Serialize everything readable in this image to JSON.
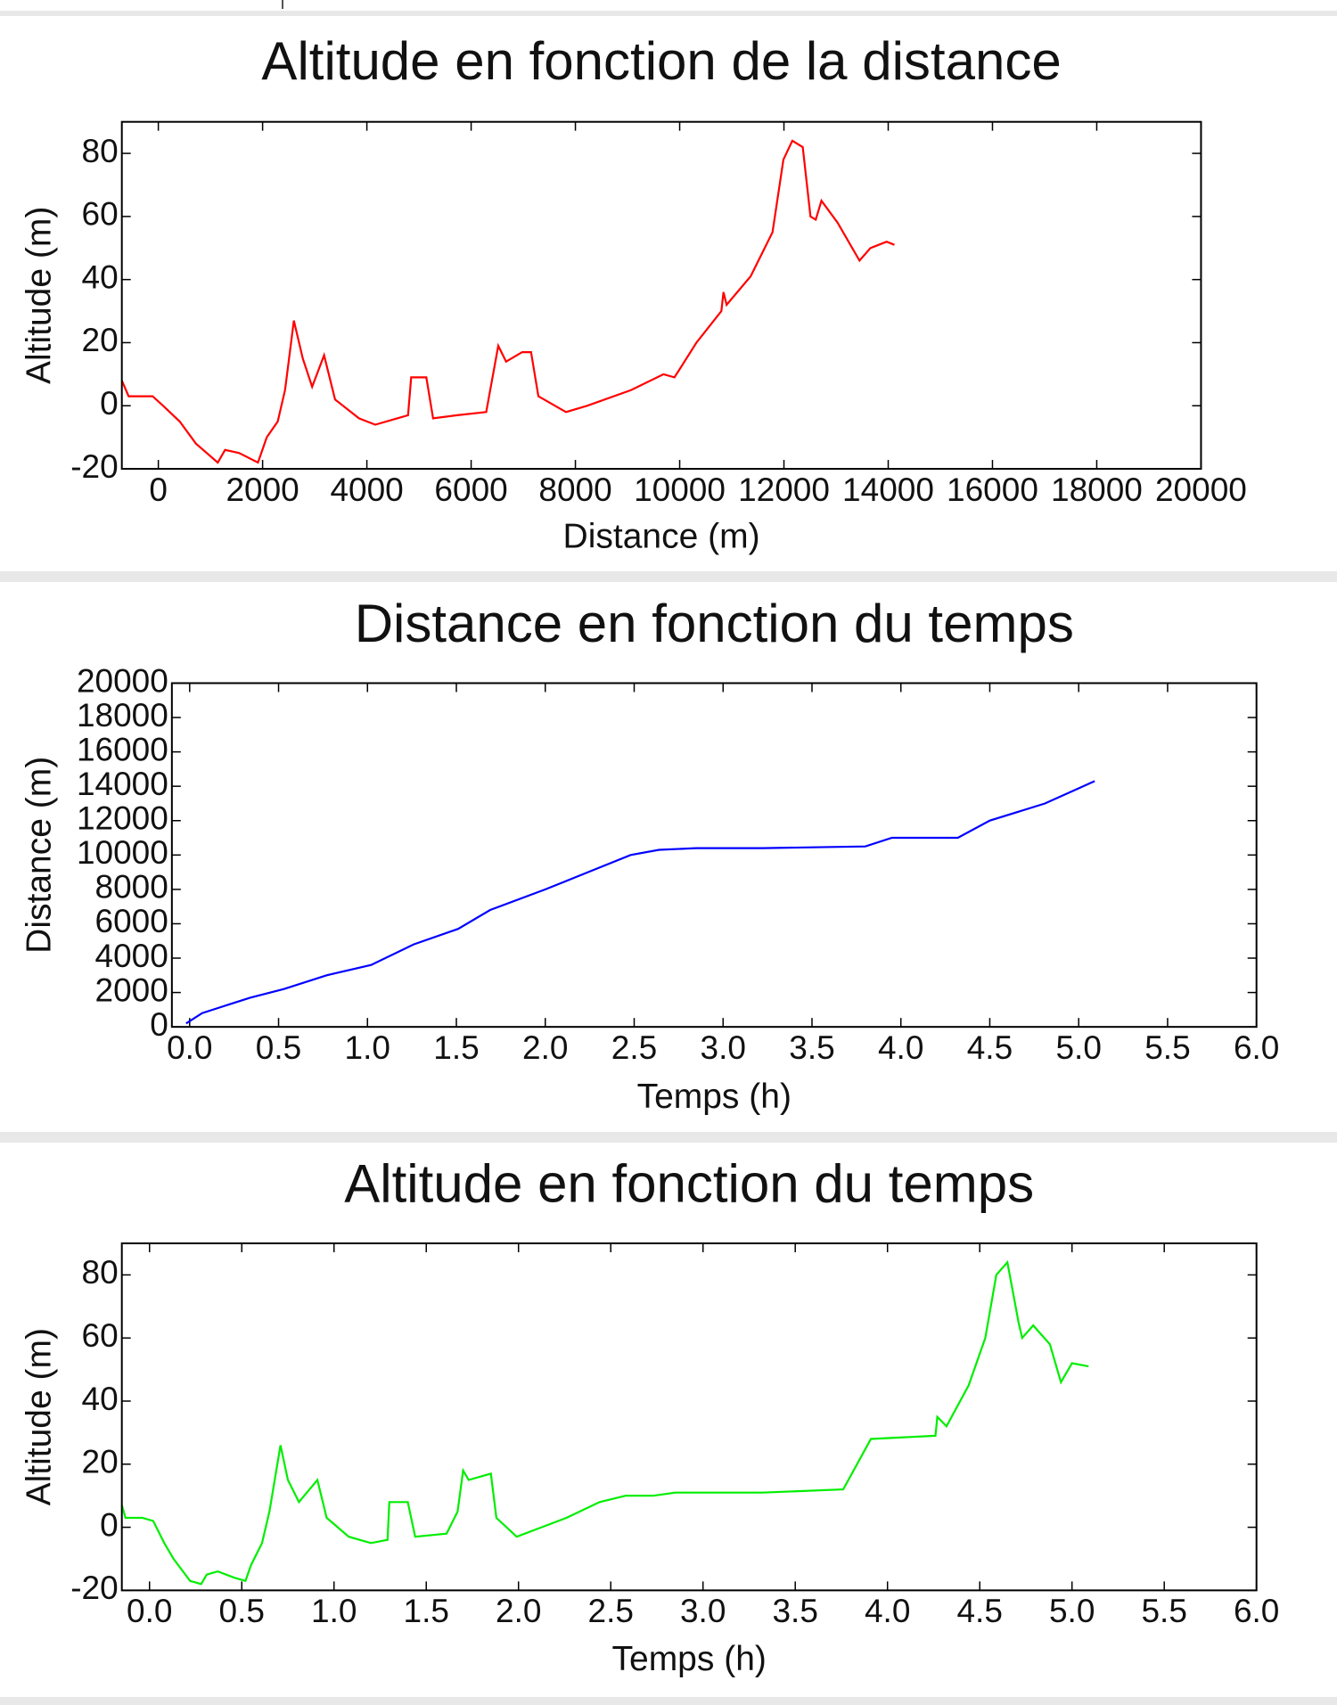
{
  "chart_data": [
    {
      "type": "line",
      "title": "Altitude en fonction de la distance",
      "x_label": "Distance (m)",
      "y_label": "Altitude (m)",
      "x": [
        -700,
        -570,
        -110,
        90,
        410,
        720,
        1140,
        1280,
        1550,
        1910,
        2080,
        2290,
        2430,
        2600,
        2770,
        2950,
        3180,
        3390,
        3850,
        4160,
        4580,
        4790,
        4850,
        5140,
        5270,
        5730,
        6290,
        6520,
        6670,
        6980,
        7150,
        7290,
        7820,
        8230,
        9070,
        9690,
        9900,
        10320,
        10800,
        10840,
        10900,
        11360,
        11780,
        11990,
        12160,
        12360,
        12510,
        12610,
        12720,
        13030,
        13450,
        13660,
        13970,
        14120
      ],
      "series": [
        {
          "color": "#ff0000",
          "values": [
            8,
            3,
            3,
            0,
            -5,
            -12,
            -18,
            -14,
            -15,
            -18,
            -10,
            -5,
            5,
            27,
            15,
            6,
            16,
            2,
            -4,
            -6,
            -4,
            -3,
            9,
            9,
            -4,
            -3,
            -2,
            19,
            14,
            17,
            17,
            3,
            -2,
            0,
            5,
            10,
            9,
            20,
            30,
            36,
            32,
            41,
            55,
            78,
            84,
            82,
            60,
            59,
            65,
            58,
            46,
            50,
            52,
            51
          ]
        }
      ],
      "xlim": [
        -700,
        20000
      ],
      "xticks": [
        0,
        2000,
        4000,
        6000,
        8000,
        10000,
        12000,
        14000,
        16000,
        18000,
        20000
      ],
      "ylim": [
        -20,
        90
      ],
      "yticks": [
        -20,
        0,
        20,
        40,
        60,
        80
      ]
    },
    {
      "type": "line",
      "title": "Distance en fonction du temps",
      "x_label": "Temps (h)",
      "y_label": "Distance (m)",
      "x": [
        -0.02,
        0.07,
        0.34,
        0.53,
        0.77,
        1.02,
        1.26,
        1.51,
        1.69,
        2.0,
        2.24,
        2.48,
        2.64,
        2.85,
        3.22,
        3.8,
        3.95,
        4.32,
        4.5,
        4.81,
        5.09
      ],
      "series": [
        {
          "color": "#0000ff",
          "values": [
            200,
            800,
            1700,
            2200,
            3000,
            3600,
            4800,
            5700,
            6800,
            8000,
            9000,
            10000,
            10300,
            10400,
            10400,
            10500,
            11000,
            11000,
            12000,
            13000,
            14300
          ]
        }
      ],
      "xlim": [
        -0.1,
        6.0
      ],
      "xticks": [
        {
          "value": 0,
          "label": "0.0"
        },
        0.5,
        {
          "value": 1,
          "label": "1.0"
        },
        1.5,
        {
          "value": 2,
          "label": "2.0"
        },
        2.5,
        {
          "value": 3,
          "label": "3.0"
        },
        3.5,
        {
          "value": 4,
          "label": "4.0"
        },
        4.5,
        {
          "value": 5,
          "label": "5.0"
        },
        5.5,
        {
          "value": 6,
          "label": "6.0"
        }
      ],
      "ylim": [
        0,
        20000
      ],
      "yticks": [
        0,
        2000,
        4000,
        6000,
        8000,
        10000,
        12000,
        14000,
        16000,
        18000,
        20000
      ]
    },
    {
      "type": "line",
      "title": "Altitude en fonction du temps",
      "x_label": "Temps (h)",
      "y_label": "Altitude (m)",
      "x": [
        -0.15,
        -0.13,
        -0.04,
        0.02,
        0.08,
        0.13,
        0.22,
        0.28,
        0.31,
        0.37,
        0.46,
        0.52,
        0.55,
        0.61,
        0.65,
        0.71,
        0.75,
        0.81,
        0.91,
        0.96,
        1.08,
        1.2,
        1.29,
        1.3,
        1.4,
        1.44,
        1.61,
        1.67,
        1.7,
        1.73,
        1.85,
        1.88,
        1.99,
        2.08,
        2.26,
        2.44,
        2.58,
        2.73,
        2.85,
        3.32,
        3.76,
        3.91,
        4.26,
        4.27,
        4.32,
        4.44,
        4.53,
        4.59,
        4.65,
        4.71,
        4.73,
        4.79,
        4.88,
        4.94,
        5.0,
        5.09
      ],
      "series": [
        {
          "color": "#00ee00",
          "values": [
            7,
            3,
            3,
            2,
            -5,
            -10,
            -17,
            -18,
            -15,
            -14,
            -16,
            -17,
            -12,
            -5,
            5,
            26,
            15,
            8,
            15,
            3,
            -3,
            -5,
            -4,
            8,
            8,
            -3,
            -2,
            5,
            18,
            15,
            17,
            3,
            -3,
            -1,
            3,
            8,
            10,
            10,
            11,
            11,
            12,
            28,
            29,
            35,
            32,
            45,
            60,
            80,
            84,
            65,
            60,
            64,
            58,
            46,
            52,
            51
          ]
        }
      ],
      "xlim": [
        -0.15,
        6.0
      ],
      "xticks": [
        {
          "value": 0,
          "label": "0.0"
        },
        0.5,
        {
          "value": 1,
          "label": "1.0"
        },
        1.5,
        {
          "value": 2,
          "label": "2.0"
        },
        2.5,
        {
          "value": 3,
          "label": "3.0"
        },
        3.5,
        {
          "value": 4,
          "label": "4.0"
        },
        4.5,
        {
          "value": 5,
          "label": "5.0"
        },
        5.5,
        {
          "value": 6,
          "label": "6.0"
        }
      ],
      "ylim": [
        -20,
        90
      ],
      "yticks": [
        -20,
        0,
        20,
        40,
        60,
        80
      ]
    }
  ]
}
